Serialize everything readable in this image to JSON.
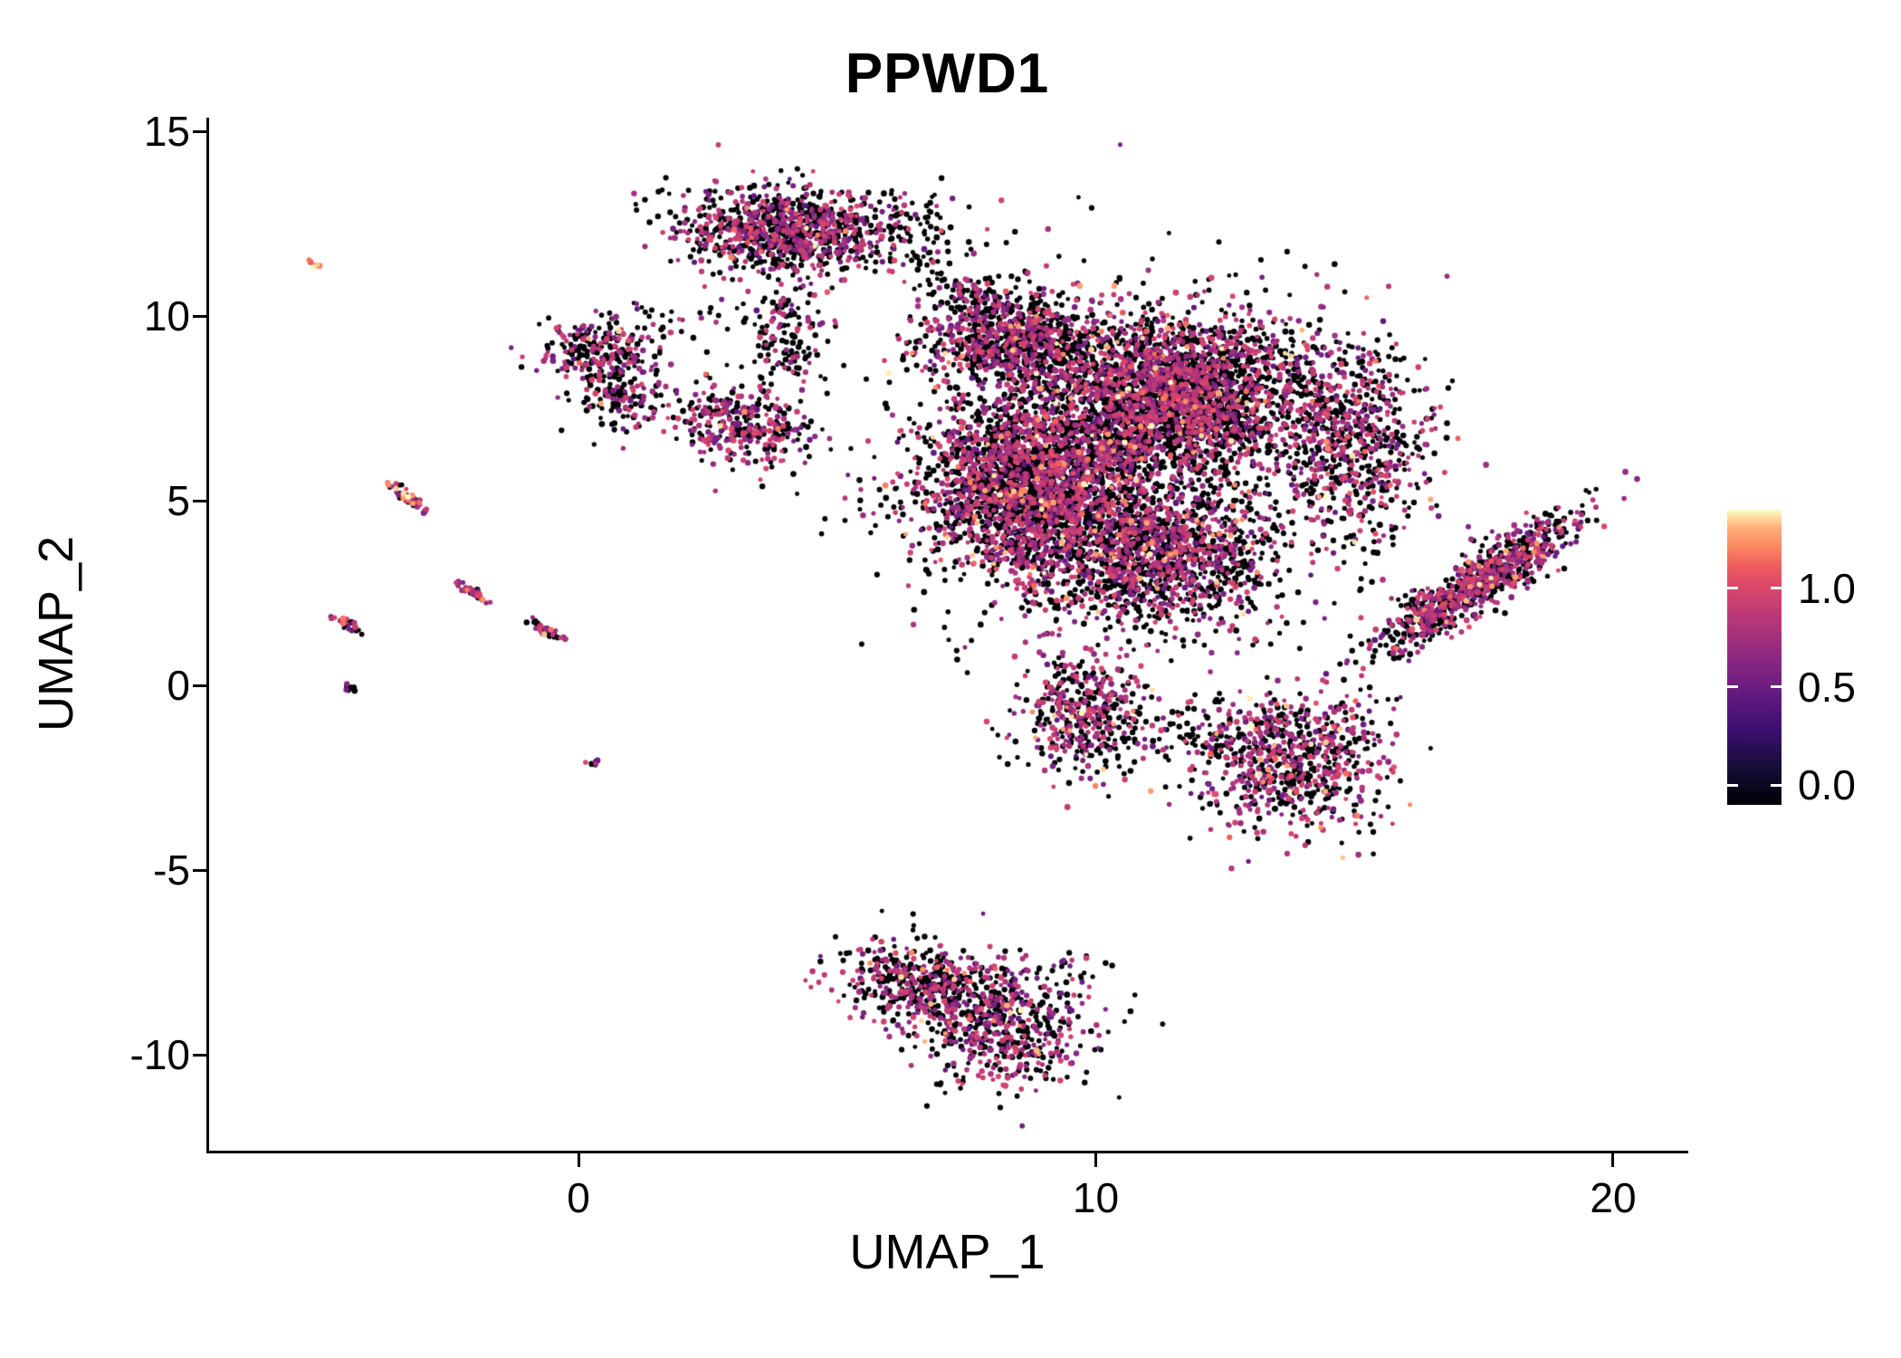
{
  "title": "PPWD1",
  "chart_data": {
    "type": "scatter",
    "title": "PPWD1",
    "xlabel": "UMAP_1",
    "ylabel": "UMAP_2",
    "xlim": [
      -7.14,
      21.4
    ],
    "ylim": [
      -12.62,
      15.37
    ],
    "xticks": [
      0,
      10,
      20
    ],
    "yticks": [
      15,
      10,
      5,
      0,
      -5,
      -10
    ],
    "grid": false,
    "legend_position": "right",
    "point_radius_px": 2.8,
    "colorbar": {
      "colormap": "magma",
      "vmin": 0,
      "vmax": 1.45,
      "ticks": [
        {
          "label": "1.0",
          "value": 1.0
        },
        {
          "label": "0.5",
          "value": 0.5
        },
        {
          "label": "0.0",
          "value": 0.0
        }
      ],
      "gradient": [
        [
          0,
          "#000004"
        ],
        [
          0.125,
          "#140E36"
        ],
        [
          0.25,
          "#3B0F70"
        ],
        [
          0.375,
          "#641A80"
        ],
        [
          0.5,
          "#8C2981"
        ],
        [
          0.625,
          "#B63679"
        ],
        [
          0.75,
          "#DE4968"
        ],
        [
          0.815,
          "#F1605D"
        ],
        [
          0.875,
          "#FB8861"
        ],
        [
          0.9375,
          "#FEAE77"
        ],
        [
          1,
          "#FCFDBF"
        ]
      ]
    },
    "clusters": [
      {
        "name": "top-main",
        "cx": 4.0,
        "cy": 12.3,
        "sx": 1.0,
        "sy": 0.58,
        "rot": -5,
        "n": 900,
        "pos": 0.5,
        "hi": 0.02
      },
      {
        "name": "top-right-sparse",
        "cx": 6.3,
        "cy": 12.2,
        "sx": 0.7,
        "sy": 0.6,
        "rot": -30,
        "n": 110,
        "pos": 0.25,
        "hi": 0.005
      },
      {
        "name": "top-tail",
        "cx": 4.0,
        "cy": 9.4,
        "sx": 0.35,
        "sy": 0.75,
        "rot": 0,
        "n": 140,
        "pos": 0.3,
        "hi": 0.005
      },
      {
        "name": "bridge-top-central",
        "cx": 7.5,
        "cy": 10.5,
        "sx": 0.6,
        "sy": 0.35,
        "rot": -20,
        "n": 70,
        "pos": 0.3,
        "hi": 0
      },
      {
        "name": "left-upper-a",
        "cx": 0.45,
        "cy": 9.1,
        "sx": 0.62,
        "sy": 0.45,
        "rot": 0,
        "n": 210,
        "pos": 0.45,
        "hi": 0.03
      },
      {
        "name": "left-upper-b",
        "cx": 0.8,
        "cy": 7.9,
        "sx": 0.5,
        "sy": 0.5,
        "rot": 0,
        "n": 150,
        "pos": 0.4,
        "hi": 0.02
      },
      {
        "name": "left-bridge-sparse",
        "cx": 1.9,
        "cy": 9.9,
        "sx": 0.5,
        "sy": 0.4,
        "rot": 0,
        "n": 25,
        "pos": 0.25,
        "hi": 0
      },
      {
        "name": "mid-left-small",
        "cx": 3.2,
        "cy": 7.1,
        "sx": 0.62,
        "sy": 0.5,
        "rot": -15,
        "n": 330,
        "pos": 0.55,
        "hi": 0.03
      },
      {
        "name": "central-upper-left",
        "cx": 8.4,
        "cy": 9.3,
        "sx": 0.9,
        "sy": 0.7,
        "rot": 0,
        "n": 900,
        "pos": 0.45,
        "hi": 0.03
      },
      {
        "name": "central-upper-right",
        "cx": 11.5,
        "cy": 7.8,
        "sx": 1.15,
        "sy": 1.05,
        "rot": 0,
        "n": 2400,
        "pos": 0.45,
        "hi": 0.04
      },
      {
        "name": "central-lower-left",
        "cx": 8.8,
        "cy": 5.4,
        "sx": 1.1,
        "sy": 1.2,
        "rot": 0,
        "n": 2400,
        "pos": 0.45,
        "hi": 0.04
      },
      {
        "name": "central-lower-mid",
        "cx": 11.2,
        "cy": 3.5,
        "sx": 1.15,
        "sy": 0.95,
        "rot": 0,
        "n": 1300,
        "pos": 0.45,
        "hi": 0.04
      },
      {
        "name": "central-halo",
        "cx": 10.3,
        "cy": 6.0,
        "sx": 2.5,
        "sy": 2.5,
        "rot": 0,
        "n": 650,
        "pos": 0.3,
        "hi": 0.02
      },
      {
        "name": "right-wing",
        "cx": 14.8,
        "cy": 6.8,
        "sx": 0.8,
        "sy": 1.4,
        "rot": 8,
        "n": 800,
        "pos": 0.5,
        "hi": 0.05
      },
      {
        "name": "right-band",
        "cx": 17.4,
        "cy": 2.8,
        "sx": 1.3,
        "sy": 0.3,
        "rot": 44,
        "n": 850,
        "pos": 0.5,
        "hi": 0.04
      },
      {
        "name": "below-1",
        "cx": 9.75,
        "cy": -0.7,
        "sx": 0.6,
        "sy": 0.85,
        "rot": 0,
        "n": 430,
        "pos": 0.55,
        "hi": 0.05
      },
      {
        "name": "below-2",
        "cx": 13.8,
        "cy": -2.0,
        "sx": 0.95,
        "sy": 0.95,
        "rot": 25,
        "n": 750,
        "pos": 0.5,
        "hi": 0.06
      },
      {
        "name": "below-connector",
        "cx": 11.8,
        "cy": -1.2,
        "sx": 0.9,
        "sy": 0.5,
        "rot": 0,
        "n": 90,
        "pos": 0.3,
        "hi": 0.01
      },
      {
        "name": "bottom-left",
        "cx": 6.6,
        "cy": -8.1,
        "sx": 0.8,
        "sy": 0.55,
        "rot": -15,
        "n": 430,
        "pos": 0.5,
        "hi": 0.02
      },
      {
        "name": "bottom-right",
        "cx": 8.3,
        "cy": -9.3,
        "sx": 0.85,
        "sy": 0.85,
        "rot": 0,
        "n": 520,
        "pos": 0.5,
        "hi": 0.02
      },
      {
        "name": "bottom-outlier",
        "cx": 9.6,
        "cy": -7.6,
        "sx": 0.35,
        "sy": 0.22,
        "rot": 0,
        "n": 14,
        "pos": 0.3,
        "hi": 0
      },
      {
        "name": "sat-orange-dot",
        "cx": -5.1,
        "cy": 11.4,
        "sx": 0.1,
        "sy": 0.06,
        "rot": -40,
        "n": 7,
        "pos": 1.0,
        "hi": 0.7
      },
      {
        "name": "sat-streak-1",
        "cx": -3.3,
        "cy": 5.1,
        "sx": 0.3,
        "sy": 0.07,
        "rot": -48,
        "n": 45,
        "pos": 0.8,
        "hi": 0.25
      },
      {
        "name": "sat-streak-2",
        "cx": -2.0,
        "cy": 2.5,
        "sx": 0.25,
        "sy": 0.06,
        "rot": -45,
        "n": 38,
        "pos": 0.7,
        "hi": 0.12
      },
      {
        "name": "sat-streak-3",
        "cx": -4.5,
        "cy": 1.7,
        "sx": 0.22,
        "sy": 0.06,
        "rot": -45,
        "n": 32,
        "pos": 0.6,
        "hi": 0.05
      },
      {
        "name": "sat-streak-4",
        "cx": -0.6,
        "cy": 1.45,
        "sx": 0.25,
        "sy": 0.07,
        "rot": -40,
        "n": 36,
        "pos": 0.55,
        "hi": 0.05
      },
      {
        "name": "sat-dot-1",
        "cx": -4.4,
        "cy": -0.1,
        "sx": 0.1,
        "sy": 0.06,
        "rot": -40,
        "n": 12,
        "pos": 0.2,
        "hi": 0
      },
      {
        "name": "sat-dot-2",
        "cx": 0.25,
        "cy": -2.1,
        "sx": 0.07,
        "sy": 0.05,
        "rot": 0,
        "n": 8,
        "pos": 0.15,
        "hi": 0
      }
    ]
  }
}
